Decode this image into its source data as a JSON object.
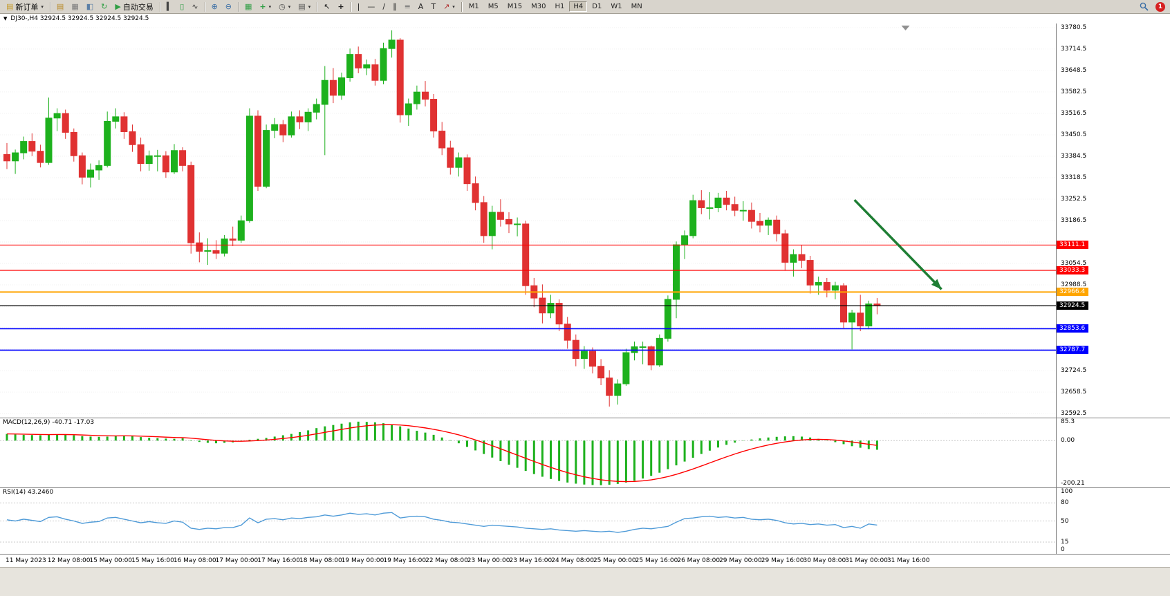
{
  "toolbar": {
    "timeframes": [
      "M1",
      "M5",
      "M15",
      "M30",
      "H1",
      "H4",
      "D1",
      "W1",
      "MN"
    ],
    "active_timeframe": "H4",
    "notification_count": "1",
    "items": [
      {
        "t": "btn",
        "id": "new-order",
        "glyph": "▤",
        "gc": "#c59b2d",
        "label": "新订单",
        "dd": true
      },
      {
        "t": "sep"
      },
      {
        "t": "ic",
        "id": "new-chart",
        "glyph": "▤",
        "gc": "#b98c2c"
      },
      {
        "t": "ic",
        "id": "chart-profiles",
        "glyph": "▦",
        "gc": "#7d7d7d"
      },
      {
        "t": "ic",
        "id": "market-watch",
        "glyph": "◧",
        "gc": "#5b7fa6"
      },
      {
        "t": "ic",
        "id": "refresh",
        "glyph": "↻",
        "gc": "#2f9e44"
      },
      {
        "t": "btn",
        "id": "auto-trading",
        "glyph": "▶",
        "gc": "#2f9e44",
        "label": "自动交易"
      },
      {
        "t": "sep"
      },
      {
        "t": "ic",
        "id": "bar-chart",
        "glyph": "▍",
        "gc": "#444444"
      },
      {
        "t": "ic",
        "id": "candlestick-chart",
        "glyph": "▯",
        "gc": "#2f9e44"
      },
      {
        "t": "ic",
        "id": "line-chart",
        "glyph": "∿",
        "gc": "#444444"
      },
      {
        "t": "sep"
      },
      {
        "t": "ic",
        "id": "zoom-in",
        "glyph": "⊕",
        "gc": "#3a6ea5"
      },
      {
        "t": "ic",
        "id": "zoom-out",
        "glyph": "⊖",
        "gc": "#3a6ea5"
      },
      {
        "t": "sep"
      },
      {
        "t": "ic",
        "id": "tile-windows",
        "glyph": "▦",
        "gc": "#2f9e44"
      },
      {
        "t": "ic",
        "id": "indicators",
        "glyph": "+",
        "gc": "#2f9e44",
        "dd": true
      },
      {
        "t": "ic",
        "id": "periods",
        "glyph": "◷",
        "gc": "#555555",
        "dd": true
      },
      {
        "t": "ic",
        "id": "templates",
        "glyph": "▤",
        "gc": "#555555",
        "dd": true
      },
      {
        "t": "sep"
      },
      {
        "t": "ic",
        "id": "cursor",
        "glyph": "↖",
        "gc": "#222222"
      },
      {
        "t": "ic",
        "id": "crosshair",
        "glyph": "+",
        "gc": "#222222"
      },
      {
        "t": "sep"
      },
      {
        "t": "ic",
        "id": "vertical-line",
        "glyph": "|",
        "gc": "#222222"
      },
      {
        "t": "ic",
        "id": "horizontal-line",
        "glyph": "—",
        "gc": "#222222"
      },
      {
        "t": "ic",
        "id": "trendline",
        "glyph": "/",
        "gc": "#222222"
      },
      {
        "t": "ic",
        "id": "channel",
        "glyph": "∥",
        "gc": "#222222"
      },
      {
        "t": "ic",
        "id": "fibonacci",
        "glyph": "≡",
        "gc": "#777777"
      },
      {
        "t": "ic",
        "id": "text",
        "glyph": "A",
        "gc": "#222222"
      },
      {
        "t": "ic",
        "id": "label",
        "glyph": "T",
        "gc": "#222222"
      },
      {
        "t": "ic",
        "id": "arrows",
        "glyph": "↗",
        "gc": "#b03030",
        "dd": true
      },
      {
        "t": "sep"
      },
      {
        "t": "tf"
      }
    ]
  },
  "chart": {
    "title": "DJ30-,H4 32924.5 32924.5 32924.5 32924.5"
  },
  "chart_data": {
    "type": "candlestick",
    "symbol_period": "DJ30-,H4",
    "ylim": [
      32580,
      33793
    ],
    "up_color": "#1db11d",
    "down_color": "#e03232",
    "price_ticks": [
      33780.5,
      33714.5,
      33648.5,
      33582.5,
      33516.5,
      33450.5,
      33384.5,
      33318.5,
      33252.5,
      33186.5,
      33120.5,
      33054.5,
      32988.5,
      32922.5,
      32856.5,
      32790.5,
      32724.5,
      32658.5,
      32592.5
    ],
    "hlines": [
      {
        "value": 33111.1,
        "label": "33111.1",
        "color": "#ff0000",
        "width": 1.2
      },
      {
        "value": 33033.3,
        "label": "33033.3",
        "color": "#ff0000",
        "width": 1.2
      },
      {
        "value": 32966.4,
        "label": "32966.4",
        "color": "#ffa500",
        "width": 2
      },
      {
        "value": 32924.5,
        "label": "32924.5",
        "color": "#000000",
        "width": 1.2
      },
      {
        "value": 32853.6,
        "label": "32853.6",
        "color": "#0000ff",
        "width": 1.6
      },
      {
        "value": 32787.7,
        "label": "32787.7",
        "color": "#0000ff",
        "width": 1.6
      }
    ],
    "arrow": {
      "from_index": 101.3,
      "from_price": 33250,
      "to_index": 111.7,
      "to_price": 32975,
      "color": "#1e7e34"
    },
    "shift_marker_index": 107.4,
    "x_labels": [
      "11 May 2023",
      "12 May 08:00",
      "15 May 00:00",
      "15 May 16:00",
      "16 May 08:00",
      "17 May 00:00",
      "17 May 16:00",
      "18 May 08:00",
      "19 May 00:00",
      "19 May 16:00",
      "22 May 08:00",
      "23 May 00:00",
      "23 May 16:00",
      "24 May 08:00",
      "25 May 00:00",
      "25 May 16:00",
      "26 May 08:00",
      "29 May 00:00",
      "29 May 16:00",
      "30 May 08:00",
      "31 May 00:00",
      "31 May 16:00"
    ],
    "candles": [
      [
        33390,
        33425,
        33345,
        33370
      ],
      [
        33370,
        33405,
        33330,
        33395
      ],
      [
        33395,
        33445,
        33375,
        33430
      ],
      [
        33430,
        33455,
        33385,
        33400
      ],
      [
        33400,
        33420,
        33350,
        33365
      ],
      [
        33365,
        33565,
        33358,
        33502
      ],
      [
        33502,
        33532,
        33462,
        33516
      ],
      [
        33516,
        33528,
        33438,
        33458
      ],
      [
        33458,
        33470,
        33368,
        33386
      ],
      [
        33386,
        33396,
        33298,
        33320
      ],
      [
        33320,
        33362,
        33288,
        33342
      ],
      [
        33342,
        33372,
        33312,
        33356
      ],
      [
        33356,
        33522,
        33350,
        33492
      ],
      [
        33492,
        33532,
        33470,
        33506
      ],
      [
        33506,
        33520,
        33438,
        33460
      ],
      [
        33460,
        33482,
        33398,
        33420
      ],
      [
        33420,
        33442,
        33338,
        33362
      ],
      [
        33362,
        33402,
        33340,
        33386
      ],
      [
        33386,
        33404,
        33338,
        33386
      ],
      [
        33386,
        33400,
        33318,
        33336
      ],
      [
        33336,
        33422,
        33330,
        33402
      ],
      [
        33402,
        33412,
        33338,
        33356
      ],
      [
        33356,
        33368,
        33085,
        33118
      ],
      [
        33118,
        33150,
        33058,
        33092
      ],
      [
        33092,
        33132,
        33050,
        33094
      ],
      [
        33094,
        33126,
        33068,
        33086
      ],
      [
        33086,
        33142,
        33076,
        33130
      ],
      [
        33130,
        33168,
        33108,
        33126
      ],
      [
        33126,
        33202,
        33118,
        33186
      ],
      [
        33186,
        33532,
        33180,
        33508
      ],
      [
        33508,
        33526,
        33278,
        33292
      ],
      [
        33292,
        33482,
        33286,
        33464
      ],
      [
        33464,
        33502,
        33440,
        33482
      ],
      [
        33482,
        33496,
        33428,
        33450
      ],
      [
        33450,
        33522,
        33442,
        33506
      ],
      [
        33506,
        33526,
        33468,
        33490
      ],
      [
        33490,
        33532,
        33462,
        33520
      ],
      [
        33520,
        33562,
        33498,
        33544
      ],
      [
        33544,
        33662,
        33388,
        33618
      ],
      [
        33618,
        33656,
        33548,
        33572
      ],
      [
        33572,
        33642,
        33558,
        33626
      ],
      [
        33626,
        33716,
        33614,
        33698
      ],
      [
        33698,
        33722,
        33640,
        33656
      ],
      [
        33656,
        33682,
        33634,
        33666
      ],
      [
        33666,
        33684,
        33602,
        33618
      ],
      [
        33618,
        33734,
        33606,
        33716
      ],
      [
        33716,
        33772,
        33688,
        33742
      ],
      [
        33742,
        33748,
        33488,
        33512
      ],
      [
        33512,
        33562,
        33478,
        33546
      ],
      [
        33546,
        33602,
        33528,
        33582
      ],
      [
        33582,
        33616,
        33538,
        33560
      ],
      [
        33560,
        33576,
        33442,
        33462
      ],
      [
        33462,
        33490,
        33388,
        33410
      ],
      [
        33410,
        33432,
        33328,
        33350
      ],
      [
        33350,
        33396,
        33322,
        33380
      ],
      [
        33380,
        33390,
        33278,
        33300
      ],
      [
        33300,
        33322,
        33218,
        33242
      ],
      [
        33242,
        33262,
        33118,
        33140
      ],
      [
        33140,
        33232,
        33098,
        33212
      ],
      [
        33212,
        33252,
        33168,
        33190
      ],
      [
        33190,
        33212,
        33148,
        33176
      ],
      [
        33176,
        33196,
        33138,
        33176
      ],
      [
        33176,
        33186,
        32958,
        32986
      ],
      [
        32986,
        33010,
        32920,
        32948
      ],
      [
        32948,
        32990,
        32870,
        32902
      ],
      [
        32902,
        32958,
        32886,
        32932
      ],
      [
        32932,
        32944,
        32846,
        32868
      ],
      [
        32868,
        32890,
        32792,
        32818
      ],
      [
        32818,
        32836,
        32738,
        32762
      ],
      [
        32762,
        32800,
        32730,
        32784
      ],
      [
        32784,
        32796,
        32716,
        32738
      ],
      [
        32738,
        32760,
        32680,
        32702
      ],
      [
        32702,
        32726,
        32614,
        32648
      ],
      [
        32648,
        32698,
        32620,
        32684
      ],
      [
        32684,
        32792,
        32678,
        32780
      ],
      [
        32780,
        32814,
        32756,
        32798
      ],
      [
        32798,
        32814,
        32744,
        32798
      ],
      [
        32798,
        32802,
        32726,
        32742
      ],
      [
        32742,
        32836,
        32736,
        32824
      ],
      [
        32824,
        32956,
        32814,
        32944
      ],
      [
        32944,
        33122,
        32886,
        33112
      ],
      [
        33112,
        33156,
        33068,
        33140
      ],
      [
        33140,
        33266,
        33132,
        33248
      ],
      [
        33248,
        33280,
        33206,
        33226
      ],
      [
        33226,
        33274,
        33190,
        33226
      ],
      [
        33226,
        33272,
        33212,
        33256
      ],
      [
        33256,
        33278,
        33218,
        33236
      ],
      [
        33236,
        33260,
        33200,
        33218
      ],
      [
        33218,
        33246,
        33186,
        33218
      ],
      [
        33218,
        33242,
        33162,
        33184
      ],
      [
        33184,
        33210,
        33150,
        33172
      ],
      [
        33172,
        33196,
        33142,
        33188
      ],
      [
        33188,
        33202,
        33122,
        33146
      ],
      [
        33146,
        33158,
        33032,
        33058
      ],
      [
        33058,
        33098,
        33014,
        33082
      ],
      [
        33082,
        33110,
        33040,
        33064
      ],
      [
        33064,
        33078,
        32962,
        32988
      ],
      [
        32988,
        33014,
        32958,
        32996
      ],
      [
        32996,
        33010,
        32950,
        32972
      ],
      [
        32972,
        32998,
        32944,
        32986
      ],
      [
        32986,
        32994,
        32856,
        32874
      ],
      [
        32874,
        32912,
        32790,
        32902
      ],
      [
        32902,
        32958,
        32846,
        32862
      ],
      [
        32862,
        32940,
        32852,
        32930
      ],
      [
        32930,
        32948,
        32898,
        32924.5
      ]
    ],
    "macd": {
      "header": "MACD(12,26,9) -40.71 -17.03",
      "ylim": [
        -210,
        100
      ],
      "axis_ticks": [
        85.3,
        0,
        -200.21
      ],
      "axis_labels": [
        "85.3",
        "0.00",
        "-200.21"
      ],
      "color_hist": "#1db11d",
      "color_signal": "#ff0000",
      "signal_ema_alpha": 0.2,
      "values": [
        30,
        28,
        26,
        25,
        24,
        26,
        28,
        27,
        24,
        20,
        18,
        17,
        18,
        20,
        22,
        20,
        16,
        13,
        11,
        9,
        8,
        10,
        2,
        -6,
        -10,
        -12,
        -10,
        -8,
        -4,
        4,
        8,
        12,
        18,
        24,
        30,
        38,
        46,
        56,
        64,
        70,
        76,
        82,
        85,
        84,
        82,
        78,
        72,
        64,
        54,
        44,
        36,
        26,
        14,
        2,
        -12,
        -28,
        -44,
        -60,
        -76,
        -92,
        -108,
        -122,
        -136,
        -150,
        -162,
        -172,
        -181,
        -188,
        -193,
        -197,
        -199,
        -200,
        -198,
        -194,
        -188,
        -180,
        -170,
        -158,
        -144,
        -128,
        -111,
        -94,
        -77,
        -60,
        -45,
        -31,
        -19,
        -9,
        -1,
        5,
        10,
        14,
        17,
        19,
        20,
        18,
        14,
        8,
        1,
        -7,
        -16,
        -25,
        -32,
        -38,
        -41
      ]
    },
    "rsi": {
      "header": "RSI(14) 43.2460",
      "ylim": [
        0,
        100
      ],
      "levels": [
        80,
        50,
        15
      ],
      "axis_values": [
        100,
        80,
        50,
        15,
        0
      ],
      "axis_labels": [
        "100",
        "80",
        "50",
        "15",
        "0"
      ],
      "color": "#4f9bd8",
      "values": [
        52,
        50,
        53,
        51,
        49,
        56,
        57,
        53,
        50,
        46,
        48,
        49,
        55,
        56,
        53,
        50,
        47,
        49,
        47,
        46,
        50,
        48,
        38,
        36,
        38,
        37,
        39,
        39,
        43,
        55,
        47,
        53,
        54,
        52,
        55,
        54,
        56,
        57,
        60,
        58,
        60,
        63,
        61,
        62,
        60,
        63,
        64,
        55,
        57,
        58,
        57,
        53,
        51,
        48,
        47,
        45,
        43,
        41,
        43,
        42,
        41,
        40,
        38,
        37,
        36,
        37,
        35,
        34,
        33,
        34,
        33,
        32,
        33,
        31,
        33,
        36,
        38,
        37,
        39,
        41,
        48,
        54,
        55,
        57,
        58,
        56,
        57,
        55,
        56,
        53,
        52,
        53,
        51,
        47,
        45,
        46,
        44,
        45,
        43,
        44,
        39,
        41,
        38,
        45,
        43.2
      ]
    }
  }
}
